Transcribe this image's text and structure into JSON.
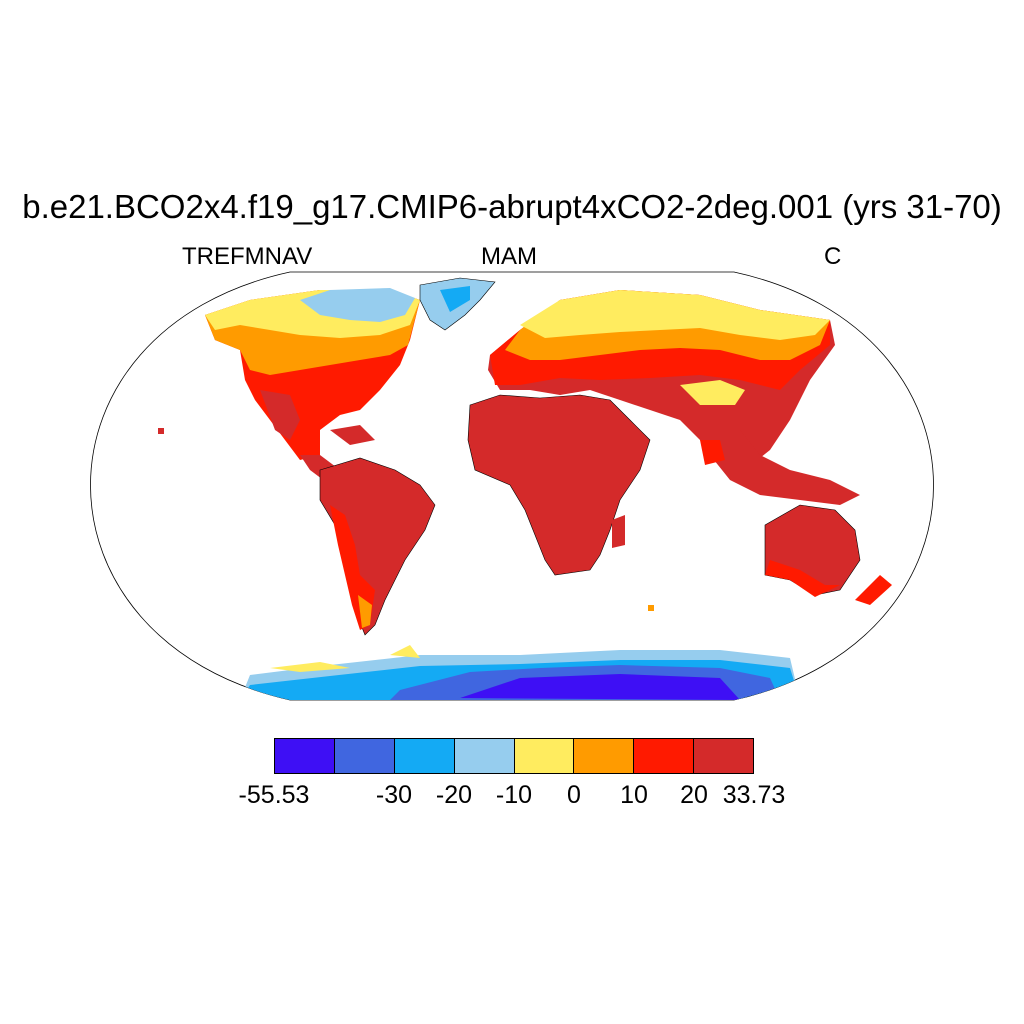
{
  "header": {
    "title": "b.e21.BCO2x4.f19_g17.CMIP6-abrupt4xCO2-2deg.001 (yrs 31-70)",
    "left": "TREFMNAV",
    "center": "MAM",
    "right": "C"
  },
  "legend": {
    "colors": [
      "#3e0ff5",
      "#4066e0",
      "#14aaf4",
      "#96cdee",
      "#ffec5f",
      "#ff9b00",
      "#ff1a00",
      "#d42a2a"
    ],
    "labels": [
      {
        "text": "-55.53",
        "at": 0
      },
      {
        "text": "-30",
        "at": 2
      },
      {
        "text": "-20",
        "at": 3
      },
      {
        "text": "-10",
        "at": 4
      },
      {
        "text": "0",
        "at": 5
      },
      {
        "text": "10",
        "at": 6
      },
      {
        "text": "20",
        "at": 7
      },
      {
        "text": "33.73",
        "at": 8
      }
    ]
  },
  "regions": {
    "north_america": "Orange/red in mid-latitudes, yellow and light blue in Arctic Canada",
    "greenland": "Light blue",
    "africa": "Dark red",
    "south_america": "Dark red with red in the southern cone",
    "eurasia": "Yellow in the north, orange and red in the south",
    "australia": "Dark red",
    "antarctica": "Dark blue interior, light blue coast"
  }
}
